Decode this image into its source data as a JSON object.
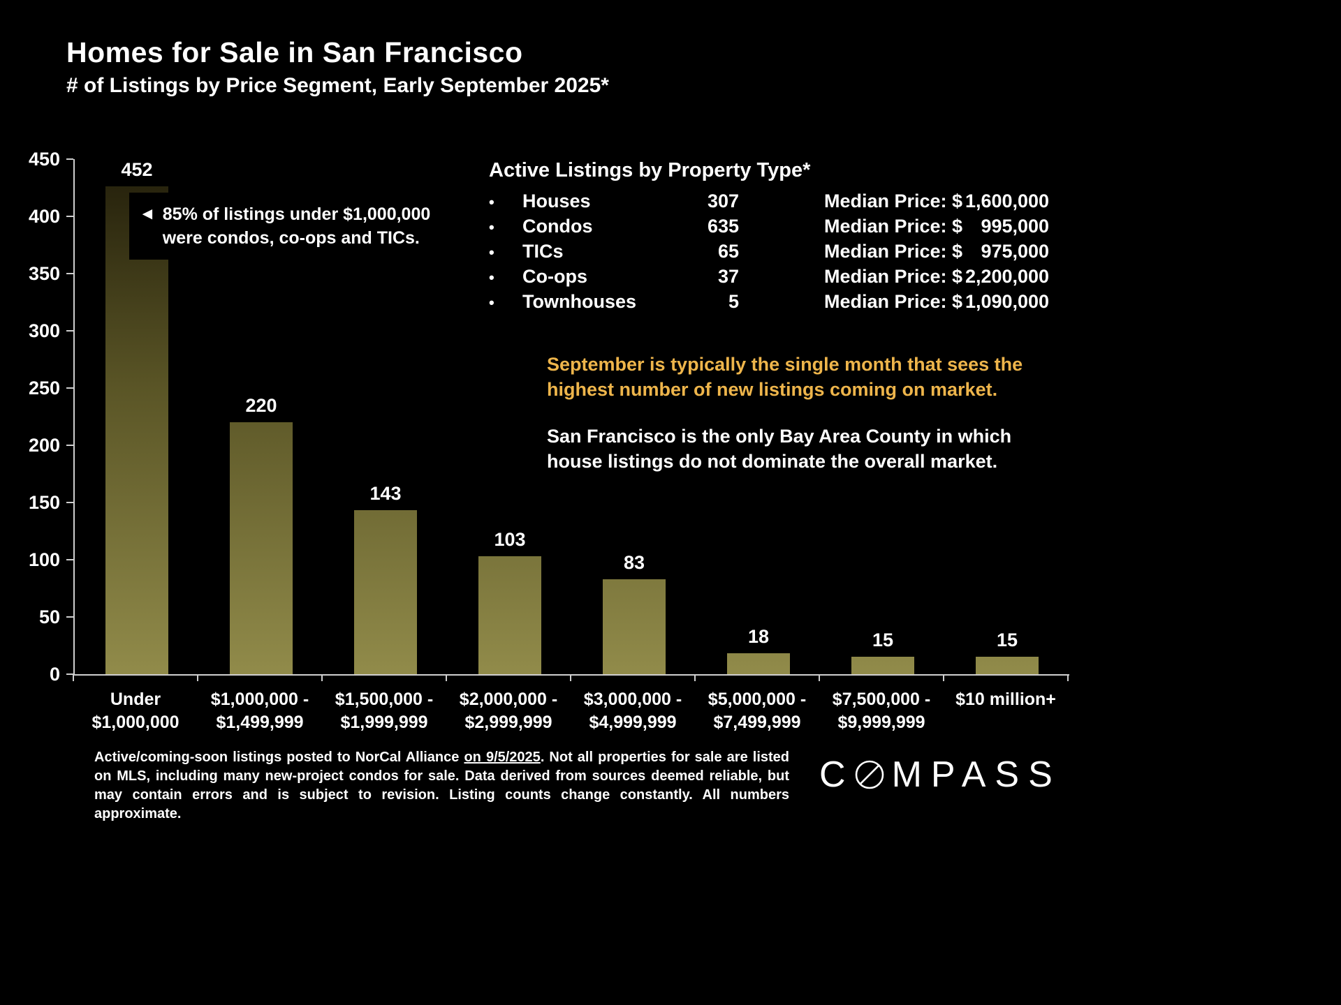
{
  "title": "Homes for Sale in San Francisco",
  "subtitle": "# of Listings by Price Segment, Early September 2025*",
  "chart_data": {
    "type": "bar",
    "title": "Homes for Sale in San Francisco",
    "subtitle": "# of Listings by Price Segment, Early September 2025*",
    "categories": [
      "Under\n$1,000,000",
      "$1,000,000 -\n$1,499,999",
      "$1,500,000 -\n$1,999,999",
      "$2,000,000 -\n$2,999,999",
      "$3,000,000 -\n$4,999,999",
      "$5,000,000 -\n$7,499,999",
      "$7,500,000 -\n$9,999,999",
      "$10 million+"
    ],
    "values": [
      452,
      220,
      143,
      103,
      83,
      18,
      15,
      15
    ],
    "xlabel": "",
    "ylabel": "",
    "ylim": [
      0,
      450
    ],
    "ytick_step": 50,
    "grid": false,
    "legend": "none",
    "bar_color_bottom": "#918b4a",
    "bar_color_top": "#201c09",
    "axis_color": "#cfcfcf",
    "background_color": "#000000"
  },
  "annotation": {
    "arrow": "◄",
    "line1": "85% of listings under $1,000,000",
    "line2": "were condos, co-ops and TICs."
  },
  "property_panel": {
    "title": "Active Listings by Property Type*",
    "bullet": "•",
    "rows": [
      {
        "name": "Houses",
        "count": "307",
        "median_label": "Median Price:",
        "median_symbol": "$",
        "median_amount": "1,600,000"
      },
      {
        "name": "Condos",
        "count": "635",
        "median_label": "Median Price:",
        "median_symbol": "$",
        "median_amount": "995,000"
      },
      {
        "name": "TICs",
        "count": "65",
        "median_label": "Median Price:",
        "median_symbol": "$",
        "median_amount": "975,000"
      },
      {
        "name": "Co-ops",
        "count": "37",
        "median_label": "Median Price:",
        "median_symbol": "$",
        "median_amount": "2,200,000"
      },
      {
        "name": "Townhouses",
        "count": "5",
        "median_label": "Median Price:",
        "median_symbol": "$",
        "median_amount": "1,090,000"
      }
    ]
  },
  "notes": {
    "september_line1": "September is typically the single month that sees the",
    "september_line2": "highest number of new listings coming on market.",
    "september_color": "#eeb54b",
    "sf_line1": "San Francisco is the only Bay Area County in which",
    "sf_line2": "house listings do not dominate the overall market."
  },
  "footer": {
    "disclaimer_pre": "Active/coming-soon listings posted to NorCal Alliance ",
    "disclaimer_date": "on 9/5/2025",
    "disclaimer_post": ". Not all properties for sale are listed on MLS, including many new-project condos for sale. Data derived from sources deemed reliable, but may contain errors and is subject to revision. Listing counts change constantly. All numbers approximate.",
    "logo_pre": "C",
    "logo_post": "MPASS"
  }
}
